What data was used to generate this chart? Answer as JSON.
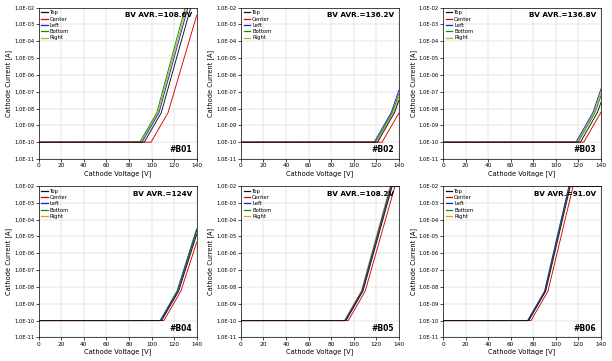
{
  "panels": [
    {
      "label": "#B01",
      "bv_avr": "108.6V",
      "bv_val": 108.6,
      "spread": 7
    },
    {
      "label": "#B02",
      "bv_avr": "136.2V",
      "bv_val": 136.2,
      "spread": 5
    },
    {
      "label": "#B03",
      "bv_avr": "136.8V",
      "bv_val": 136.8,
      "spread": 5
    },
    {
      "label": "#B04",
      "bv_avr": "124V",
      "bv_val": 124.0,
      "spread": 3
    },
    {
      "label": "#B05",
      "bv_avr": "108.2V",
      "bv_val": 108.2,
      "spread": 3
    },
    {
      "label": "#B06",
      "bv_avr": "91.0V",
      "bv_val": 91.0,
      "spread": 3
    }
  ],
  "panel_bv_offsets": [
    [
      0,
      6,
      -2,
      -4,
      -3
    ],
    [
      0,
      4,
      -3,
      -2,
      -1
    ],
    [
      0,
      3,
      -4,
      -2,
      -3
    ],
    [
      0,
      2,
      -1,
      -1.5,
      -0.5
    ],
    [
      0,
      2,
      -1,
      -0.5,
      -1.5
    ],
    [
      0,
      2,
      -1,
      -0.5,
      -1
    ]
  ],
  "legend_labels": [
    "Top",
    "Center",
    "Left",
    "Bottom",
    "Right"
  ],
  "line_colors": [
    "#111111",
    "#dd0000",
    "#2222cc",
    "#009900",
    "#ccaa00"
  ],
  "xlabel": "Cathode Voltage [V]",
  "ylabel": "Cathode Current [A]",
  "xlim": [
    0,
    140
  ],
  "ylim_log_min": -11,
  "ylim_log_max": -2,
  "ytick_labels": [
    "1.0E-11",
    "1.0E-10",
    "1.0E-09",
    "1.0E-08",
    "1.0E-07",
    "1.0E-06",
    "1.0E-05",
    "1.0E-04",
    "1.0E-03",
    "1.0E-02"
  ],
  "xticks": [
    0,
    20,
    40,
    60,
    80,
    100,
    120,
    140
  ],
  "background_color": "#ffffff",
  "grid_color": "#cccccc"
}
